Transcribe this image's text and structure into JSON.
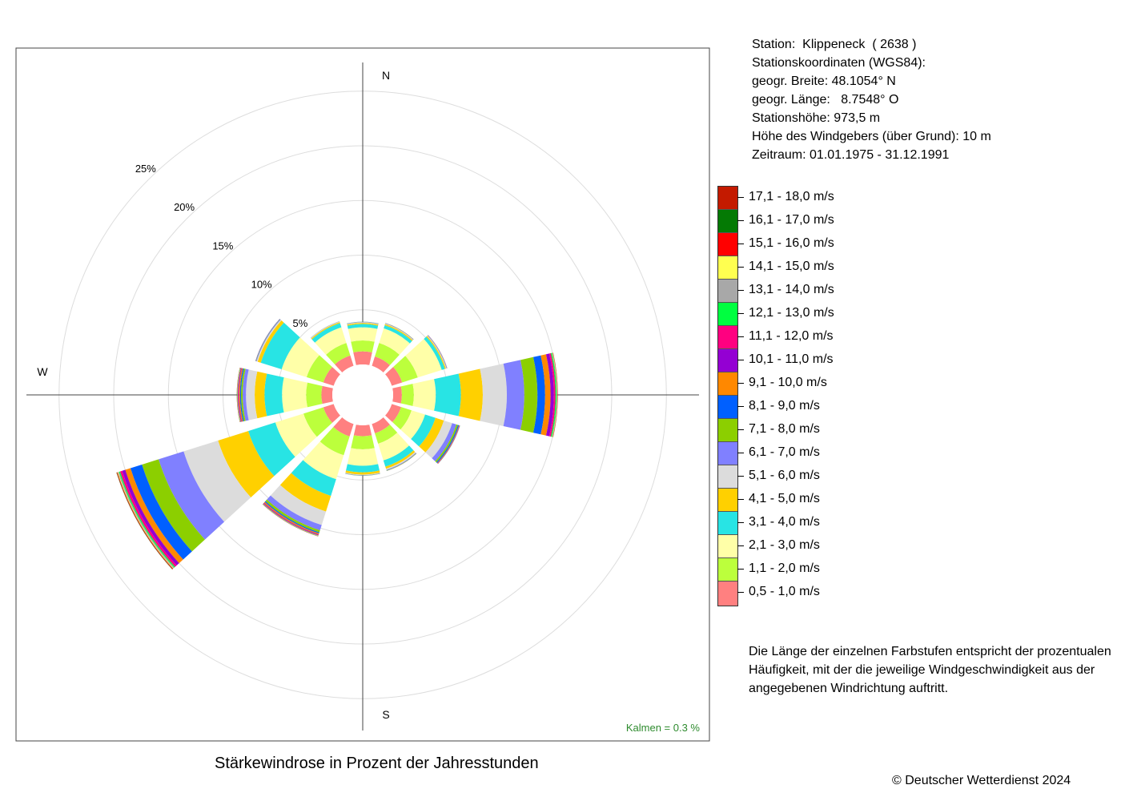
{
  "station_info": {
    "station": "Station:  Klippeneck  ( 2638 )",
    "coords_title": "Stationskoordinaten (WGS84):",
    "lat": "geogr. Breite: 48.1054° N",
    "lon": "geogr. Länge:   8.7548° O",
    "height": "Stationshöhe: 973,5 m",
    "sensor_height": "Höhe des Windgebers (über Grund): 10 m",
    "period": "Zeitraum: 01.01.1975 - 31.12.1991"
  },
  "legend": [
    {
      "label": "17,1 - 18,0 m/s",
      "color": "#c41a00"
    },
    {
      "label": "16,1 - 17,0 m/s",
      "color": "#047a04"
    },
    {
      "label": "15,1 - 16,0 m/s",
      "color": "#ff0000"
    },
    {
      "label": "14,1 - 15,0 m/s",
      "color": "#ffff50"
    },
    {
      "label": "13,1 - 14,0 m/s",
      "color": "#a8a8a8"
    },
    {
      "label": "12,1 - 13,0 m/s",
      "color": "#00ff40"
    },
    {
      "label": "11,1 - 12,0 m/s",
      "color": "#ff0080"
    },
    {
      "label": "10,1 - 11,0 m/s",
      "color": "#9400d3"
    },
    {
      "label": "9,1 - 10,0 m/s",
      "color": "#ff8800"
    },
    {
      "label": "8,1 - 9,0 m/s",
      "color": "#0060ff"
    },
    {
      "label": "7,1 - 8,0 m/s",
      "color": "#8ccf00"
    },
    {
      "label": "6,1 - 7,0 m/s",
      "color": "#8080ff"
    },
    {
      "label": "5,1 - 6,0 m/s",
      "color": "#dcdcdc"
    },
    {
      "label": "4,1 - 5,0 m/s",
      "color": "#ffd000"
    },
    {
      "label": "3,1 - 4,0 m/s",
      "color": "#28e4e4"
    },
    {
      "label": "2,1 - 3,0 m/s",
      "color": "#ffffa8"
    },
    {
      "label": "1,1 - 2,0 m/s",
      "color": "#bcff3c"
    },
    {
      "label": "0,5 - 1,0 m/s",
      "color": "#ff8080"
    }
  ],
  "note": "Die Länge der einzelnen Farbstufen entspricht der prozentualen Häufigkeit, mit der die jeweilige Windgeschwindigkeit aus der angegebenen Windrichtung auftritt.",
  "copyright": "© Deutscher Wetterdienst  2024",
  "caption": "Stärkewindrose in Prozent der Jahresstunden",
  "calm_label": "Kalmen  =  0.3 %",
  "chart_data": {
    "type": "wind_rose",
    "title": "Stärkewindrose in Prozent der Jahresstunden",
    "direction_labels": {
      "N": "N",
      "W": "W",
      "S": "S"
    },
    "ring_labels": [
      "5%",
      "10%",
      "15%",
      "20%",
      "25%"
    ],
    "ring_values": [
      5,
      10,
      15,
      20,
      25
    ],
    "directions_deg": [
      0,
      30,
      60,
      90,
      120,
      150,
      180,
      210,
      240,
      270,
      300,
      330
    ],
    "speed_classes": [
      "0,5 - 1,0 m/s",
      "1,1 - 2,0 m/s",
      "2,1 - 3,0 m/s",
      "3,1 - 4,0 m/s",
      "4,1 - 5,0 m/s",
      "5,1 - 6,0 m/s",
      "6,1 - 7,0 m/s",
      "7,1 - 8,0 m/s",
      "8,1 - 9,0 m/s",
      "9,1 - 10,0 m/s",
      "10,1 - 11,0 m/s",
      "11,1 - 12,0 m/s",
      "12,1 - 13,0 m/s",
      "13,1 - 14,0 m/s",
      "14,1 - 15,0 m/s",
      "15,1 - 16,0 m/s",
      "16,1 - 17,0 m/s",
      "17,1 - 18,0 m/s"
    ],
    "percent_by_direction": [
      [
        1.2,
        1.0,
        1.2,
        0.3,
        0.1,
        0.05,
        0.03,
        0.02,
        0.01,
        0,
        0,
        0,
        0,
        0,
        0,
        0,
        0,
        0
      ],
      [
        0.9,
        1.3,
        1.4,
        0.3,
        0.1,
        0.05,
        0.03,
        0.02,
        0.01,
        0.01,
        0,
        0,
        0,
        0,
        0,
        0,
        0,
        0
      ],
      [
        1.0,
        1.5,
        2.3,
        0.3,
        0.1,
        0.05,
        0.03,
        0.02,
        0.01,
        0.01,
        0.01,
        0,
        0,
        0,
        0,
        0,
        0,
        0
      ],
      [
        0.8,
        1.1,
        2.0,
        2.3,
        2.0,
        2.2,
        1.6,
        1.2,
        0.7,
        0.5,
        0.3,
        0.15,
        0.1,
        0.05,
        0.03,
        0.02,
        0.01,
        0.01
      ],
      [
        0.9,
        1.0,
        1.3,
        1.0,
        0.8,
        0.8,
        0.4,
        0.15,
        0.1,
        0.05,
        0.03,
        0.02,
        0.01,
        0,
        0,
        0,
        0,
        0
      ],
      [
        0.9,
        1.0,
        1.6,
        0.6,
        0.2,
        0.1,
        0.05,
        0.03,
        0.02,
        0.01,
        0,
        0,
        0,
        0,
        0,
        0,
        0,
        0
      ],
      [
        1.0,
        1.2,
        1.5,
        0.6,
        0.2,
        0.05,
        0.03,
        0.02,
        0.01,
        0,
        0,
        0,
        0,
        0,
        0,
        0,
        0,
        0
      ],
      [
        1.2,
        1.8,
        2.3,
        1.6,
        1.5,
        1.3,
        0.5,
        0.2,
        0.1,
        0.1,
        0.05,
        0.05,
        0.03,
        0.02,
        0.01,
        0.01,
        0.01,
        0.01
      ],
      [
        1.0,
        1.9,
        2.7,
        2.6,
        2.9,
        3.3,
        2.4,
        1.6,
        1.1,
        0.5,
        0.3,
        0.2,
        0.1,
        0.1,
        0.05,
        0.05,
        0.03,
        0.02
      ],
      [
        1.0,
        1.4,
        2.2,
        1.6,
        0.9,
        0.8,
        0.3,
        0.15,
        0.1,
        0.1,
        0.05,
        0.05,
        0.03,
        0.02,
        0.01,
        0.01,
        0.01,
        0.01
      ],
      [
        1.0,
        1.6,
        2.4,
        2.0,
        0.3,
        0.1,
        0.05,
        0.03,
        0.02,
        0.01,
        0.01,
        0,
        0,
        0,
        0,
        0,
        0,
        0
      ],
      [
        1.0,
        1.2,
        1.5,
        0.4,
        0.1,
        0.05,
        0.02,
        0.01,
        0,
        0,
        0,
        0,
        0,
        0,
        0,
        0,
        0,
        0
      ]
    ],
    "calm_percent": 0.3,
    "grid": true
  }
}
